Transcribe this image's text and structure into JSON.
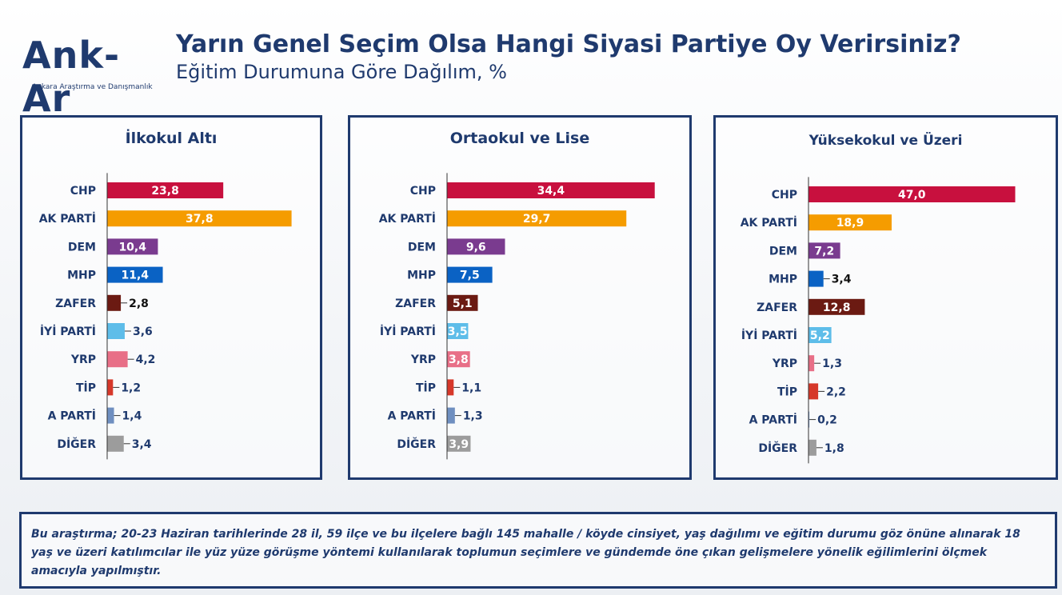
{
  "header": {
    "logo_text": "Ank-Ar",
    "logo_sub": "Ankara Araştırma ve Danışmanlık",
    "title": "Yarın Genel Seçim Olsa Hangi Siyasi Partiye Oy Verirsiniz?",
    "subtitle": "Eğitim Durumuna Göre Dağılım, %"
  },
  "colors": {
    "CHP": "#c8103e",
    "AK PARTİ": "#f59c00",
    "DEM": "#7a3b8f",
    "MHP": "#0a62c4",
    "ZAFER": "#6b1a12",
    "İYİ PARTİ": "#5ebde9",
    "YRP": "#e86f87",
    "TİP": "#d6382a",
    "A PARTİ": "#6f8fc0",
    "DİĞER": "#9c9c9c"
  },
  "chart_data": [
    {
      "type": "bar",
      "title": "İlkokul Altı",
      "categories": [
        "CHP",
        "AK PARTİ",
        "DEM",
        "MHP",
        "ZAFER",
        "İYİ PARTİ",
        "YRP",
        "TİP",
        "A PARTİ",
        "DİĞER"
      ],
      "values": [
        23.8,
        37.8,
        10.4,
        11.4,
        2.8,
        3.6,
        4.2,
        1.2,
        1.4,
        3.4
      ],
      "labels": [
        "23,8",
        "37,8",
        "10,4",
        "11,4",
        "2,8",
        "3,6",
        "4,2",
        "1,2",
        "1,4",
        "3,4"
      ]
    },
    {
      "type": "bar",
      "title": "Ortaokul ve Lise",
      "categories": [
        "CHP",
        "AK PARTİ",
        "DEM",
        "MHP",
        "ZAFER",
        "İYİ PARTİ",
        "YRP",
        "TİP",
        "A PARTİ",
        "DİĞER"
      ],
      "values": [
        34.4,
        29.7,
        9.6,
        7.5,
        5.1,
        3.5,
        3.8,
        1.1,
        1.3,
        3.9
      ],
      "labels": [
        "34,4",
        "29,7",
        "9,6",
        "7,5",
        "5,1",
        "3,5",
        "3,8",
        "1,1",
        "1,3",
        "3,9"
      ]
    },
    {
      "type": "bar",
      "title": "Yüksekokul ve Üzeri",
      "categories": [
        "CHP",
        "AK PARTİ",
        "DEM",
        "MHP",
        "ZAFER",
        "İYİ PARTİ",
        "YRP",
        "TİP",
        "A PARTİ",
        "DİĞER"
      ],
      "values": [
        47.0,
        18.9,
        7.2,
        3.4,
        12.8,
        5.2,
        1.3,
        2.2,
        0.2,
        1.8
      ],
      "labels": [
        "47,0",
        "18,9",
        "7,2",
        "3,4",
        "12,8",
        "5,2",
        "1,3",
        "2,2",
        "0,2",
        "1,8"
      ]
    }
  ],
  "footer": {
    "note": "Bu araştırma; 20-23 Haziran tarihlerinde 28 il, 59 ilçe ve bu ilçelere bağlı 145 mahalle / köyde cinsiyet, yaş dağılımı ve eğitim durumu göz önüne alınarak 18 yaş ve üzeri katılımcılar ile yüz yüze görüşme yöntemi kullanılarak toplumun seçimlere ve gündemde öne çıkan gelişmelere yönelik eğilimlerini ölçmek amacıyla yapılmıştır."
  }
}
